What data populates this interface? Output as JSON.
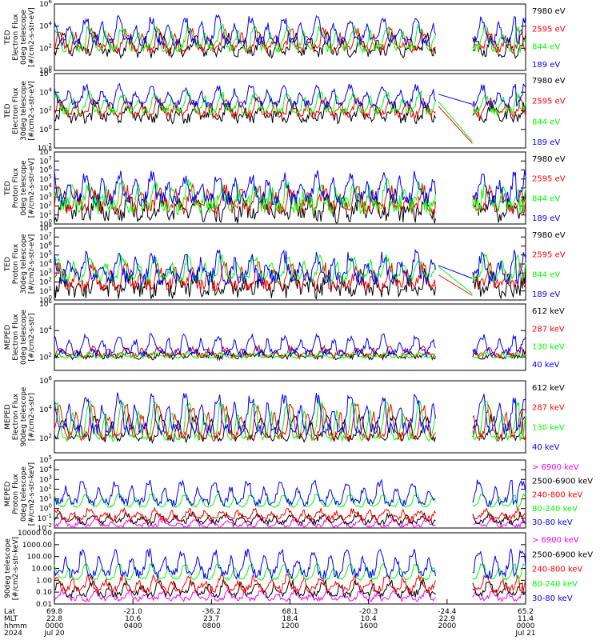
{
  "colors": {
    "blue": "#0000ff",
    "red": "#ff0000",
    "green": "#00ff00",
    "black": "#000000",
    "magenta": "#ff00ff"
  },
  "chart_data": [
    {
      "type": "line",
      "ylabel": [
        "TED",
        "Electron Flux",
        "0deg telescope",
        "[#/cm2-s-str-eV]"
      ],
      "ylim": [
        1,
        1000000
      ],
      "scale": "log",
      "yticks": [
        {
          "e": 0
        },
        {
          "e": 2
        },
        {
          "e": 4
        },
        {
          "e": 6
        }
      ],
      "series": [
        {
          "name": "7980 eV",
          "color": "black",
          "base": 1.6,
          "amp": 1.4,
          "noise": 0.5
        },
        {
          "name": "2595 eV",
          "color": "red",
          "base": 1.9,
          "amp": 1.6,
          "noise": 0.4
        },
        {
          "name": "844 eV",
          "color": "green",
          "base": 2.0,
          "amp": 1.8,
          "noise": 0.4
        },
        {
          "name": "189 eV",
          "color": "blue",
          "base": 2.6,
          "amp": 2.0,
          "noise": 0.4
        }
      ]
    },
    {
      "type": "line",
      "ylabel": [
        "TED",
        "Electron Flux",
        "30deg telescope",
        "[#/cm2-s-str-eV]"
      ],
      "ylim": [
        0.01,
        1000000
      ],
      "scale": "log",
      "yticks": [
        {
          "e": -2
        },
        {
          "e": 0
        },
        {
          "e": 2
        },
        {
          "e": 4
        },
        {
          "e": 6
        }
      ],
      "bridge": true,
      "series": [
        {
          "name": "7980 eV",
          "color": "black",
          "base": 1.2,
          "amp": 1.3,
          "noise": 0.6
        },
        {
          "name": "2595 eV",
          "color": "red",
          "base": 1.6,
          "amp": 1.5,
          "noise": 0.4
        },
        {
          "name": "844 eV",
          "color": "green",
          "base": 1.9,
          "amp": 1.8,
          "noise": 0.4
        },
        {
          "name": "189 eV",
          "color": "blue",
          "base": 2.7,
          "amp": 1.8,
          "noise": 0.4
        }
      ]
    },
    {
      "type": "line",
      "ylabel": [
        "TED",
        "Proton Flux",
        "0deg telescope",
        "[#/cm2-s-str-eV]"
      ],
      "ylim": [
        1,
        100000000
      ],
      "scale": "log",
      "yticks": [
        {
          "e": 0
        },
        {
          "e": 1
        },
        {
          "e": 2
        },
        {
          "e": 3
        },
        {
          "e": 4
        },
        {
          "e": 5
        },
        {
          "e": 6
        },
        {
          "e": 7
        },
        {
          "e": 8
        }
      ],
      "series": [
        {
          "name": "7980 eV",
          "color": "black",
          "base": 1.0,
          "amp": 2.0,
          "noise": 1.0
        },
        {
          "name": "2595 eV",
          "color": "red",
          "base": 1.8,
          "amp": 2.0,
          "noise": 0.8
        },
        {
          "name": "844 eV",
          "color": "green",
          "base": 2.0,
          "amp": 2.0,
          "noise": 1.0
        },
        {
          "name": "189 eV",
          "color": "blue",
          "base": 2.8,
          "amp": 2.4,
          "noise": 0.8
        }
      ]
    },
    {
      "type": "line",
      "ylabel": [
        "TED",
        "Proton Flux",
        "30deg telescope",
        "[#/cm2-s-str-eV]"
      ],
      "ylim": [
        1,
        100000000
      ],
      "scale": "log",
      "yticks": [
        {
          "e": 0
        },
        {
          "e": 1
        },
        {
          "e": 2
        },
        {
          "e": 3
        },
        {
          "e": 4
        },
        {
          "e": 5
        },
        {
          "e": 6
        },
        {
          "e": 7
        },
        {
          "e": 8
        }
      ],
      "bridge": true,
      "series": [
        {
          "name": "7980 eV",
          "color": "black",
          "base": 1.0,
          "amp": 1.6,
          "noise": 0.9
        },
        {
          "name": "2595 eV",
          "color": "red",
          "base": 1.6,
          "amp": 2.0,
          "noise": 0.7
        },
        {
          "name": "844 eV",
          "color": "green",
          "base": 2.4,
          "amp": 2.2,
          "noise": 0.5
        },
        {
          "name": "189 eV",
          "color": "blue",
          "base": 2.4,
          "amp": 2.4,
          "noise": 0.8
        }
      ]
    },
    {
      "type": "line",
      "ylabel": [
        "MEPED",
        "Electron Flux",
        "0deg telescope",
        "[#/cm2-s-str]"
      ],
      "ylim": [
        10,
        1000000
      ],
      "scale": "log",
      "yticks": [
        {
          "e": 2
        },
        {
          "e": 4
        },
        {
          "e": 6
        }
      ],
      "series": [
        {
          "name": "612 keV",
          "color": "black",
          "base": 2.0,
          "amp": 0.4,
          "noise": 0.2
        },
        {
          "name": "287 keV",
          "color": "red",
          "base": 2.1,
          "amp": 0.6,
          "noise": 0.2
        },
        {
          "name": "130 keV",
          "color": "green",
          "base": 2.0,
          "amp": 0.3,
          "noise": 0.1
        },
        {
          "name": "40 keV",
          "color": "blue",
          "base": 2.3,
          "amp": 1.2,
          "noise": 0.3
        }
      ]
    },
    {
      "type": "line",
      "ylabel": [
        "MEPED",
        "Electron Flux",
        "90deg telescope",
        "[#/cm2-s-str]"
      ],
      "ylim": [
        10,
        1000000
      ],
      "scale": "log",
      "yticks": [
        {
          "e": 2
        },
        {
          "e": 4
        },
        {
          "e": 6
        }
      ],
      "series": [
        {
          "name": "612 keV",
          "color": "black",
          "base": 2.0,
          "amp": 1.4,
          "noise": 0.3
        },
        {
          "name": "287 keV",
          "color": "red",
          "base": 2.1,
          "amp": 2.0,
          "noise": 0.3
        },
        {
          "name": "130 keV",
          "color": "green",
          "base": 2.0,
          "amp": 2.4,
          "noise": 0.2
        },
        {
          "name": "40 keV",
          "color": "blue",
          "base": 2.6,
          "amp": 2.2,
          "noise": 0.4
        }
      ]
    },
    {
      "type": "line",
      "ylabel": [
        "MEPED",
        "Proton Flux",
        "0deg telescope",
        "[#/cm2-s-str-keV]"
      ],
      "ylim": [
        0.01,
        100000
      ],
      "scale": "log",
      "yticks": [
        {
          "e": -2
        },
        {
          "e": -1
        },
        {
          "e": 0
        },
        {
          "e": 1
        },
        {
          "e": 2
        },
        {
          "e": 3
        },
        {
          "e": 4
        },
        {
          "e": 5
        }
      ],
      "series": [
        {
          "name": "> 6900 keV",
          "color": "magenta",
          "base": -1.8,
          "amp": 0.6,
          "noise": 0.2
        },
        {
          "name": "2500-6900 keV",
          "color": "black",
          "base": -1.4,
          "amp": 0.8,
          "noise": 0.3
        },
        {
          "name": "240-800 keV",
          "color": "red",
          "base": -1.0,
          "amp": 0.8,
          "noise": 0.3
        },
        {
          "name": "80-240 keV",
          "color": "green",
          "base": 0.2,
          "amp": 1.2,
          "noise": 0.1
        },
        {
          "name": "30-80 keV",
          "color": "blue",
          "base": 0.6,
          "amp": 2.0,
          "noise": 0.4
        }
      ]
    },
    {
      "type": "line",
      "ylabel": [
        "90deg telescope",
        "[#/cm2-s-str-keV]"
      ],
      "ylim": [
        0.01,
        10000
      ],
      "scale": "log",
      "yticks": [
        {
          "e": -2,
          "label": "0.01"
        },
        {
          "e": -1,
          "label": "0.10"
        },
        {
          "e": 0,
          "label": "1.00"
        },
        {
          "e": 1,
          "label": "10.00"
        },
        {
          "e": 2,
          "label": "100.00"
        },
        {
          "e": 3,
          "label": "1000.00"
        },
        {
          "e": 4,
          "label": "10000.00"
        }
      ],
      "series": [
        {
          "name": "> 6900 keV",
          "color": "magenta",
          "base": -1.6,
          "amp": 0.6,
          "noise": 0.2
        },
        {
          "name": "2500-6900 keV",
          "color": "black",
          "base": -1.2,
          "amp": 1.0,
          "noise": 0.3
        },
        {
          "name": "240-800 keV",
          "color": "red",
          "base": -0.8,
          "amp": 1.0,
          "noise": 0.3
        },
        {
          "name": "80-240 keV",
          "color": "green",
          "base": 0.1,
          "amp": 1.2,
          "noise": 0.1
        },
        {
          "name": "30-80 keV",
          "color": "blue",
          "base": 0.5,
          "amp": 1.8,
          "noise": 0.4
        }
      ]
    }
  ],
  "x_axis": {
    "row_labels": [
      "Lat",
      "MLT",
      "hhmm",
      "2024"
    ],
    "ticks": [
      {
        "lat": "69.8",
        "mlt": "22.8",
        "hhmm": "0000",
        "date": "Jul 20"
      },
      {
        "lat": "-21.0",
        "mlt": "10.6",
        "hhmm": "0400",
        "date": ""
      },
      {
        "lat": "-36.2",
        "mlt": "23.7",
        "hhmm": "0800",
        "date": ""
      },
      {
        "lat": "68.1",
        "mlt": "18.4",
        "hhmm": "1200",
        "date": ""
      },
      {
        "lat": "-20.3",
        "mlt": "10.4",
        "hhmm": "1600",
        "date": ""
      },
      {
        "lat": "-24.4",
        "mlt": "22.9",
        "hhmm": "2000",
        "date": ""
      },
      {
        "lat": "65.2",
        "mlt": "11.4",
        "hhmm": "0000",
        "date": "Jul 21"
      }
    ]
  }
}
